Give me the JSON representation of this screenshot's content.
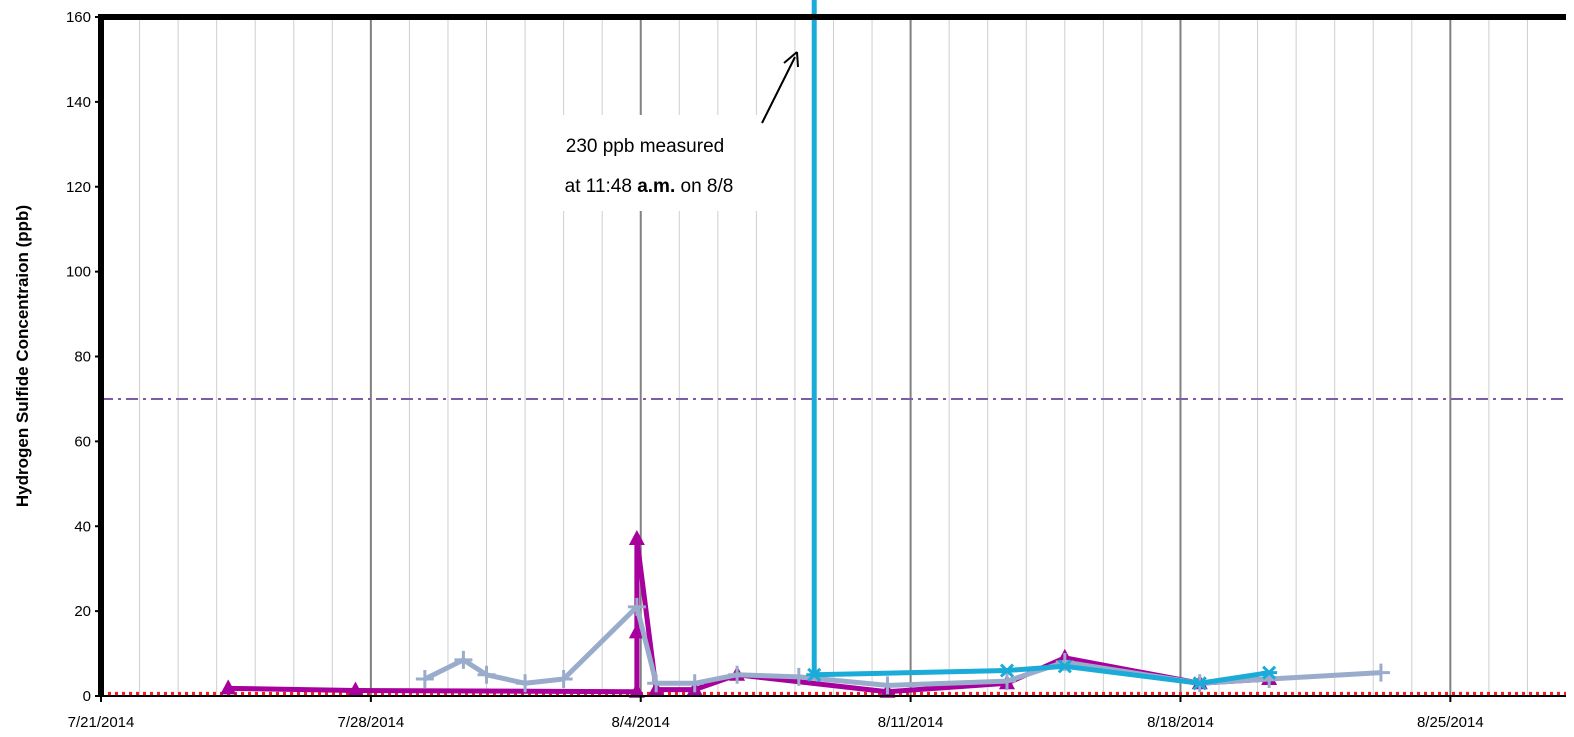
{
  "chart_data": {
    "type": "line",
    "title": "",
    "xlabel": "",
    "ylabel": "Hydrogen Sulfide Concentraion (ppb)",
    "xlim": [
      "2014-07-21",
      "2014-08-28"
    ],
    "ylim": [
      0,
      160
    ],
    "y_ticks": [
      0,
      20,
      40,
      60,
      80,
      100,
      120,
      140,
      160
    ],
    "x_ticks": [
      "7/21/2014",
      "7/28/2014",
      "8/4/2014",
      "8/11/2014",
      "8/18/2014",
      "8/25/2014"
    ],
    "grid": "vertical, daily minor and weekly major",
    "legend": "none",
    "reference_lines": [
      {
        "value": 70,
        "style": "dash-dot",
        "color": "#7b5ea7"
      },
      {
        "value": 0.5,
        "style": "dotted",
        "color": "#ff1a1a"
      }
    ],
    "series": [
      {
        "color": "#a8009c",
        "marker": "triangle",
        "points": [
          {
            "x": "2014-07-24.3",
            "y": 1.8
          },
          {
            "x": "2014-07-27.6",
            "y": 1.3
          },
          {
            "x": "2014-08-03.9",
            "y": 1.0
          },
          {
            "x": "2014-08-03.9",
            "y": 15
          },
          {
            "x": "2014-08-03.9",
            "y": 37
          },
          {
            "x": "2014-08-04.4",
            "y": 1.5
          },
          {
            "x": "2014-08-05.4",
            "y": 1.5
          },
          {
            "x": "2014-08-06.5",
            "y": 5
          },
          {
            "x": "2014-08-10.4",
            "y": 1
          },
          {
            "x": "2014-08-13.5",
            "y": 3
          },
          {
            "x": "2014-08-15.0",
            "y": 9
          },
          {
            "x": "2014-08-18.5",
            "y": 3
          },
          {
            "x": "2014-08-20.3",
            "y": 4
          }
        ]
      },
      {
        "color": "#9aaccb",
        "marker": "plus",
        "points": [
          {
            "x": "2014-07-29.4",
            "y": 4
          },
          {
            "x": "2014-07-30.4",
            "y": 8.5
          },
          {
            "x": "2014-07-31.0",
            "y": 5
          },
          {
            "x": "2014-08-01.0",
            "y": 3
          },
          {
            "x": "2014-08-02.0",
            "y": 4
          },
          {
            "x": "2014-08-03.9",
            "y": 21
          },
          {
            "x": "2014-08-04.4",
            "y": 3
          },
          {
            "x": "2014-08-05.4",
            "y": 3
          },
          {
            "x": "2014-08-06.5",
            "y": 5
          },
          {
            "x": "2014-08-08.1",
            "y": 4.5
          },
          {
            "x": "2014-08-10.4",
            "y": 2.5
          },
          {
            "x": "2014-08-13.5",
            "y": 3.5
          },
          {
            "x": "2014-08-15.0",
            "y": 8
          },
          {
            "x": "2014-08-18.5",
            "y": 3
          },
          {
            "x": "2014-08-20.3",
            "y": 4
          },
          {
            "x": "2014-08-23.2",
            "y": 5.5
          }
        ]
      },
      {
        "color": "#1aabd9",
        "marker": "asterisk",
        "points": [
          {
            "x": "2014-08-08.5",
            "y": 230
          },
          {
            "x": "2014-08-08.5",
            "y": 5
          },
          {
            "x": "2014-08-13.5",
            "y": 6
          },
          {
            "x": "2014-08-15.0",
            "y": 7
          },
          {
            "x": "2014-08-18.5",
            "y": 3
          },
          {
            "x": "2014-08-20.3",
            "y": 5.5
          }
        ]
      }
    ],
    "annotation": {
      "line1": "230 ppb measured",
      "line2_prefix": "at 11:48 ",
      "line2_bold": "a.m.",
      "line2_suffix": " on 8/8"
    }
  }
}
